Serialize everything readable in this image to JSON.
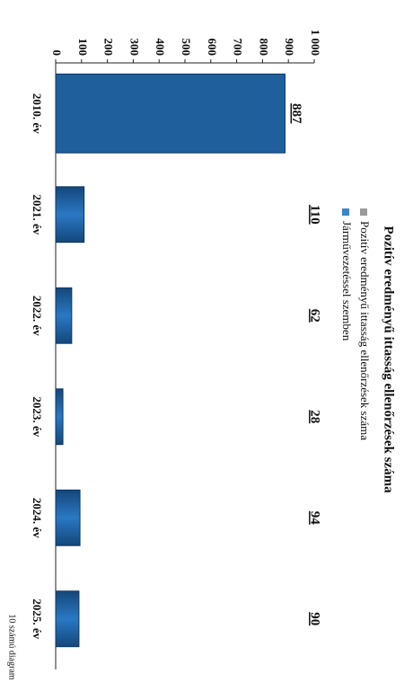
{
  "chart_data": {
    "type": "bar",
    "title": "Pozitív eredményű ittasság ellenőrzések száma",
    "legend_entries": [
      {
        "name": "Pozitív eredményű ittasság ellenőrzések száma",
        "color": "#9a9a9a"
      },
      {
        "name": "Járművezetéssel szemben",
        "color": "#3a86c8"
      }
    ],
    "categories": [
      "2010. év",
      "2021. év",
      "2022. év",
      "2023. év",
      "2024. év",
      "2025. év"
    ],
    "series": [
      {
        "name": "Járművezetéssel szemben",
        "color": "#1f5f9c",
        "values": [
          887,
          110,
          62,
          28,
          94,
          90
        ]
      }
    ],
    "ylim": [
      0,
      1000
    ],
    "yticks": [
      0,
      100,
      200,
      300,
      400,
      500,
      600,
      700,
      800,
      900,
      {
        "value": 1000,
        "label": "1 000"
      }
    ],
    "footer": "10 számú diagram"
  }
}
